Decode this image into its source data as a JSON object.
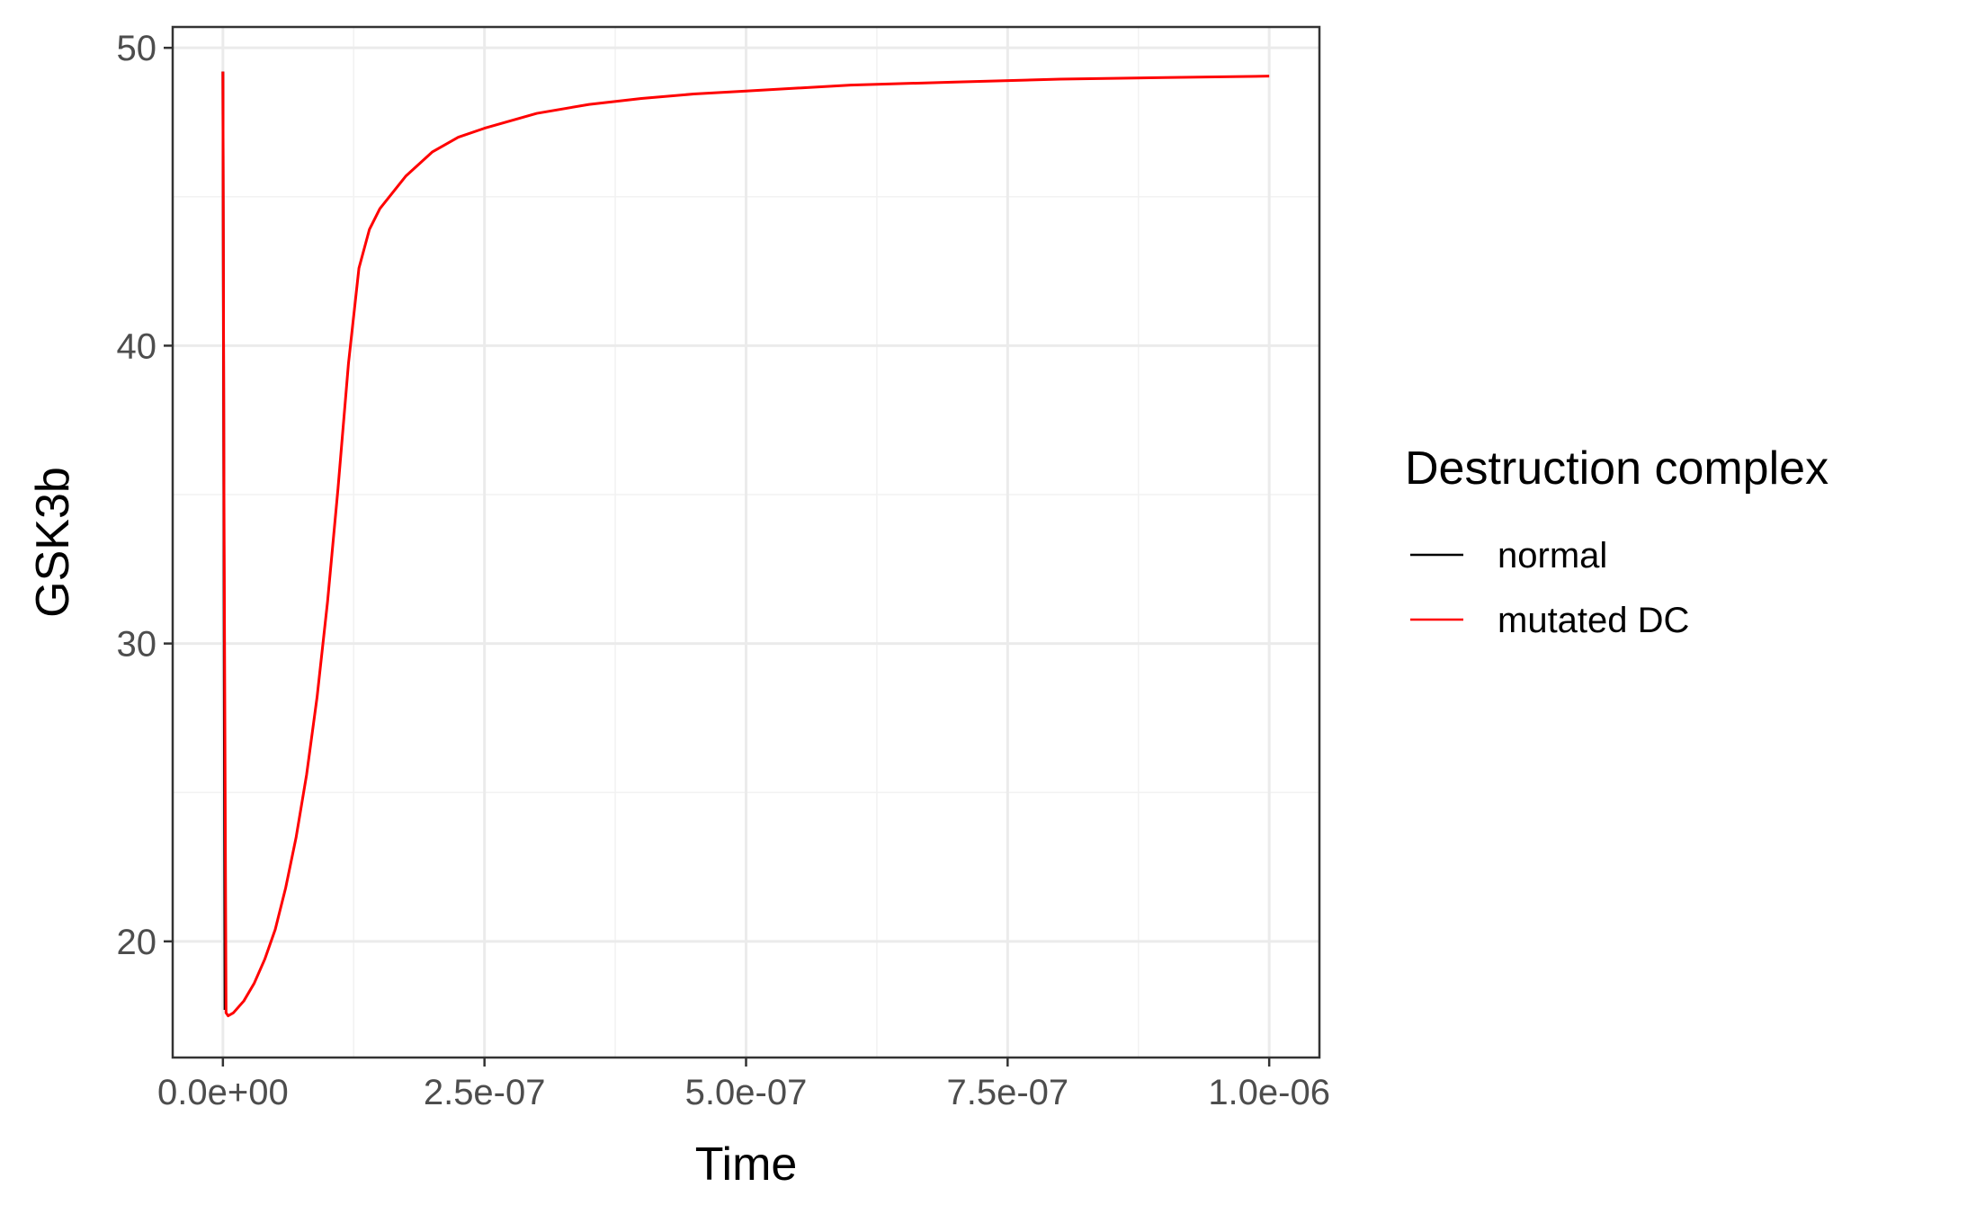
{
  "chart_data": {
    "type": "line",
    "xlabel": "Time",
    "ylabel": "GSK3b",
    "xlim": [
      -4.8e-08,
      1.048e-06
    ],
    "ylim": [
      16.1,
      50.7
    ],
    "x_ticks": [
      0,
      2.5e-07,
      5e-07,
      7.5e-07,
      1e-06
    ],
    "x_tick_labels": [
      "0.0e+00",
      "2.5e-07",
      "5.0e-07",
      "7.5e-07",
      "1.0e-06"
    ],
    "y_ticks": [
      20,
      30,
      40,
      50
    ],
    "y_tick_labels": [
      "20",
      "30",
      "40",
      "50"
    ],
    "grid": true,
    "legend": {
      "title": "Destruction complex",
      "placement": "right",
      "entries": [
        {
          "label": "normal",
          "color": "#000000"
        },
        {
          "label": "mutated DC",
          "color": "#ff0000"
        }
      ]
    },
    "series": [
      {
        "name": "normal",
        "color": "#000000",
        "x": [
          0,
          1e-09,
          2e-09
        ],
        "y": [
          49.2,
          33.5,
          17.7
        ]
      },
      {
        "name": "mutated DC",
        "color": "#ff0000",
        "x": [
          0,
          1e-09,
          3e-09,
          5e-09,
          1e-08,
          2e-08,
          3e-08,
          4e-08,
          5e-08,
          6e-08,
          7e-08,
          8e-08,
          9e-08,
          1e-07,
          1.1e-07,
          1.2e-07,
          1.3e-07,
          1.4e-07,
          1.5e-07,
          1.75e-07,
          2e-07,
          2.25e-07,
          2.5e-07,
          3e-07,
          3.5e-07,
          4e-07,
          4.5e-07,
          5e-07,
          6e-07,
          7e-07,
          8e-07,
          9e-07,
          1e-06
        ],
        "y": [
          49.2,
          35.0,
          17.6,
          17.5,
          17.6,
          18.0,
          18.6,
          19.4,
          20.4,
          21.8,
          23.5,
          25.6,
          28.2,
          31.4,
          35.2,
          39.4,
          42.6,
          43.9,
          44.6,
          45.7,
          46.5,
          47.0,
          47.3,
          47.8,
          48.1,
          48.3,
          48.45,
          48.55,
          48.75,
          48.85,
          48.95,
          49.0,
          49.05
        ]
      }
    ]
  }
}
